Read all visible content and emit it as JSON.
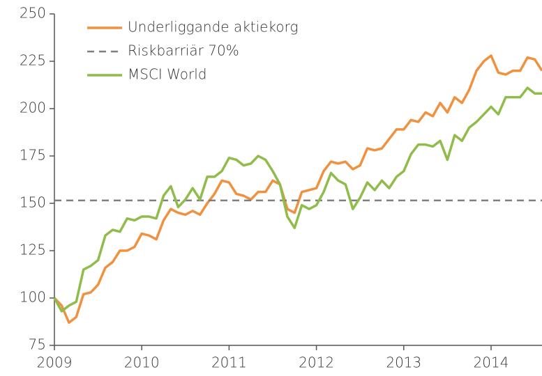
{
  "chart_data": {
    "type": "line",
    "x": [
      2009,
      2009.083,
      2009.167,
      2009.25,
      2009.333,
      2009.417,
      2009.5,
      2009.583,
      2009.667,
      2009.75,
      2009.833,
      2009.917,
      2010,
      2010.083,
      2010.167,
      2010.25,
      2010.333,
      2010.417,
      2010.5,
      2010.583,
      2010.667,
      2010.75,
      2010.833,
      2010.917,
      2011,
      2011.083,
      2011.167,
      2011.25,
      2011.333,
      2011.417,
      2011.5,
      2011.583,
      2011.667,
      2011.75,
      2011.833,
      2011.917,
      2012,
      2012.083,
      2012.167,
      2012.25,
      2012.333,
      2012.417,
      2012.5,
      2012.583,
      2012.667,
      2012.75,
      2012.833,
      2012.917,
      2013,
      2013.083,
      2013.167,
      2013.25,
      2013.333,
      2013.417,
      2013.5,
      2013.583,
      2013.667,
      2013.75,
      2013.833,
      2013.917,
      2014,
      2014.083,
      2014.167,
      2014.25,
      2014.333,
      2014.417,
      2014.5,
      2014.583
    ],
    "series": [
      {
        "name": "Underliggande aktiekorg",
        "color": "#f0913f",
        "dashed": false,
        "values": [
          100,
          96,
          87,
          90,
          102,
          103,
          107,
          116,
          119,
          125,
          125,
          127,
          134,
          133,
          131,
          141,
          147,
          145,
          144,
          146,
          144,
          150,
          155,
          162,
          161,
          155,
          154,
          152,
          156,
          156,
          162,
          160,
          147,
          145,
          156,
          157,
          158,
          167,
          172,
          171,
          172,
          168,
          170,
          179,
          178,
          179,
          184,
          189,
          189,
          194,
          193,
          198,
          196,
          203,
          198,
          206,
          203,
          210,
          220,
          225,
          228,
          219,
          218,
          220,
          220,
          227,
          226,
          220
        ]
      },
      {
        "name": "Riskbarriär 70%",
        "color": "#7f7f7f",
        "dashed": true,
        "x": [
          2009,
          2014.583
        ],
        "values": [
          151.5,
          151.5
        ]
      },
      {
        "name": "MSCI World",
        "color": "#8fbc4a",
        "dashed": false,
        "values": [
          100,
          93,
          96,
          98,
          115,
          117,
          120,
          133,
          136,
          135,
          142,
          141,
          143,
          143,
          142,
          154,
          159,
          148,
          152,
          158,
          152,
          164,
          164,
          167,
          174,
          173,
          170,
          171,
          175,
          173,
          167,
          160,
          143,
          137,
          149,
          147,
          149,
          156,
          166,
          162,
          160,
          147,
          153,
          161,
          157,
          162,
          158,
          164,
          167,
          176,
          181,
          181,
          180,
          183,
          173,
          186,
          183,
          190,
          193,
          197,
          201,
          197,
          206,
          206,
          206,
          211,
          208,
          208
        ]
      }
    ],
    "xlim": [
      2009,
      2014.583
    ],
    "xticks": [
      2009,
      2010,
      2011,
      2012,
      2013,
      2014
    ],
    "ylim": [
      75,
      250
    ],
    "yticks": [
      75,
      100,
      125,
      150,
      175,
      200,
      225,
      250
    ],
    "grid": false,
    "legend": "upper left"
  }
}
